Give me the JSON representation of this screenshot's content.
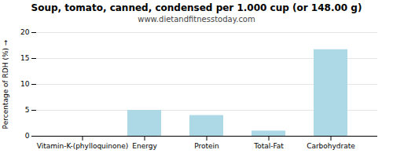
{
  "chart_data": {
    "type": "bar",
    "title": "Soup, tomato, canned, condensed per 1.000 cup (or 148.00 g)",
    "subtitle": "www.dietandfitnesstoday.com",
    "categories": [
      "Vitamin-K-(phylloquinone)",
      "Energy",
      "Protein",
      "Total-Fat",
      "Carbohydrate"
    ],
    "values": [
      0.0,
      5.0,
      4.0,
      1.0,
      16.7
    ],
    "color": "#add8e6",
    "ylabel": "Percentage of RDH (%)",
    "ylim": [
      0,
      20
    ],
    "yticks": [
      0,
      5,
      10,
      15,
      20
    ],
    "grid": true
  }
}
